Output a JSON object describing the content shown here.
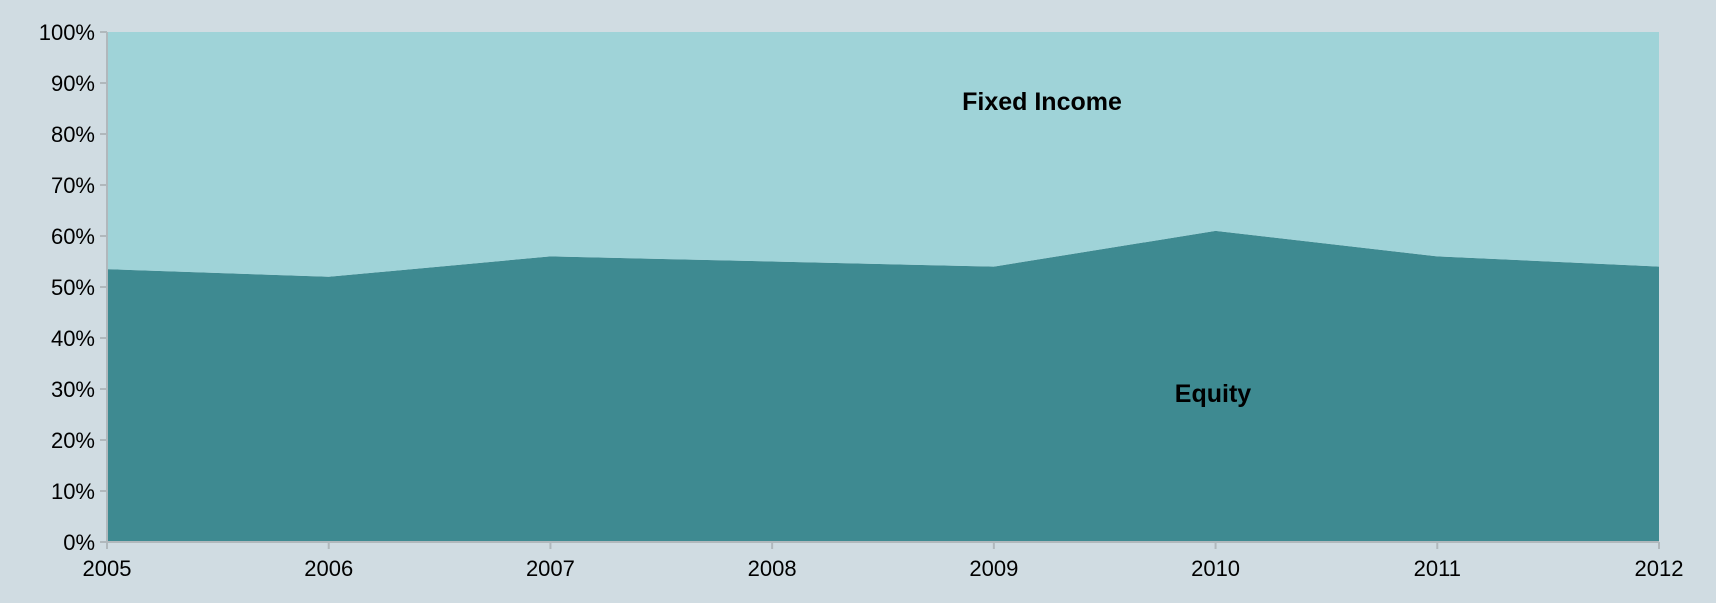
{
  "chart_data": {
    "type": "area",
    "stacked": true,
    "normalized": true,
    "x": [
      "2005",
      "2006",
      "2007",
      "2008",
      "2009",
      "2010",
      "2011",
      "2012"
    ],
    "series": [
      {
        "name": "Equity",
        "values": [
          53.5,
          52,
          56,
          55,
          54,
          61,
          56,
          54
        ],
        "color": "#3e8a91"
      },
      {
        "name": "Fixed Income",
        "values": [
          46.5,
          48,
          44,
          45,
          46,
          39,
          44,
          46
        ],
        "color": "#9fd3d8"
      }
    ],
    "ylim": [
      0,
      100
    ],
    "y_ticks": [
      "0%",
      "10%",
      "20%",
      "30%",
      "40%",
      "50%",
      "60%",
      "70%",
      "80%",
      "90%",
      "100%"
    ],
    "x_ticks": [
      "2005",
      "2006",
      "2007",
      "2008",
      "2009",
      "2010",
      "2011",
      "2012"
    ],
    "series_labels": [
      "Fixed Income",
      "Equity"
    ],
    "grid": false,
    "legend": "none",
    "axis_color": "#b0b8bc"
  }
}
